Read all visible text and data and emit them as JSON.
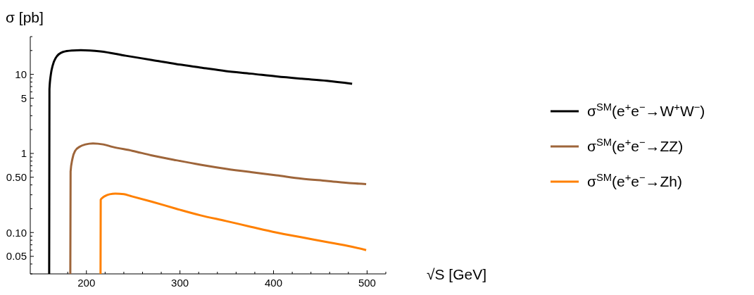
{
  "chart_data": {
    "type": "line",
    "xlabel": "√S  [GeV]",
    "ylabel": "σ [pb]",
    "log": "y",
    "legend": "right",
    "grid": false,
    "marker": "none",
    "line_style": "solid",
    "xlim": [
      140,
      520
    ],
    "xticks": [
      {
        "value": 160,
        "label": null
      },
      {
        "value": 180,
        "label": null
      },
      200,
      {
        "value": 220,
        "label": null
      },
      {
        "value": 240,
        "label": null
      },
      {
        "value": 260,
        "label": null
      },
      {
        "value": 280,
        "label": null
      },
      300,
      {
        "value": 320,
        "label": null
      },
      {
        "value": 340,
        "label": null
      },
      {
        "value": 360,
        "label": null
      },
      {
        "value": 380,
        "label": null
      },
      400,
      {
        "value": 420,
        "label": null
      },
      {
        "value": 440,
        "label": null
      },
      {
        "value": 460,
        "label": null
      },
      {
        "value": 480,
        "label": null
      },
      500,
      {
        "value": 520,
        "label": null
      }
    ],
    "ylim": [
      0.03,
      30
    ],
    "yticks": [
      {
        "value": 0.03,
        "label": null
      },
      {
        "value": 0.04,
        "label": null
      },
      {
        "value": 0.05,
        "label": "0.05"
      },
      {
        "value": 0.06,
        "label": null
      },
      {
        "value": 0.07,
        "label": null
      },
      {
        "value": 0.08,
        "label": null
      },
      {
        "value": 0.09,
        "label": null
      },
      {
        "value": 0.1,
        "label": "0.10"
      },
      {
        "value": 0.2,
        "label": null
      },
      {
        "value": 0.3,
        "label": null
      },
      {
        "value": 0.4,
        "label": null
      },
      {
        "value": 0.5,
        "label": "0.50"
      },
      {
        "value": 0.6,
        "label": null
      },
      {
        "value": 0.7,
        "label": null
      },
      {
        "value": 0.8,
        "label": null
      },
      {
        "value": 0.9,
        "label": null
      },
      1,
      {
        "value": 2,
        "label": null
      },
      {
        "value": 3,
        "label": null
      },
      {
        "value": 4,
        "label": null
      },
      5,
      {
        "value": 6,
        "label": null
      },
      {
        "value": 7,
        "label": null
      },
      {
        "value": 8,
        "label": null
      },
      {
        "value": 9,
        "label": null
      },
      10,
      {
        "value": 20,
        "label": null
      },
      {
        "value": 30,
        "label": null
      }
    ],
    "series": [
      {
        "name": "σ$^{SM}$(e$^{+}$e$^{−}$→W$^{+}$W$^{−}$)",
        "color": "#000000",
        "x": [
          160.2,
          160.5,
          162,
          164,
          167,
          175,
          185,
          194,
          215,
          242,
          270,
          296,
          322,
          349,
          376,
          403,
          430,
          457,
          484
        ],
        "values": [
          0.03,
          6.5,
          10,
          13,
          16,
          19.2,
          20,
          20.2,
          19.5,
          17.2,
          15.2,
          13.5,
          12.2,
          11,
          10.2,
          9.4,
          8.8,
          8.3,
          7.6
        ]
      },
      {
        "name": "σ$^{SM}$(e$^{+}$e$^{−}$→ZZ)",
        "color": "#9e653a",
        "x": [
          182.8,
          183.1,
          185,
          188,
          193,
          199,
          207,
          218,
          228,
          249,
          269,
          296,
          322,
          349,
          376,
          403,
          430,
          457,
          484,
          499
        ],
        "values": [
          0.03,
          0.59,
          0.85,
          1.08,
          1.22,
          1.3,
          1.34,
          1.3,
          1.21,
          1.08,
          0.95,
          0.82,
          0.72,
          0.64,
          0.58,
          0.53,
          0.48,
          0.45,
          0.42,
          0.41
        ]
      },
      {
        "name": "σ$^{SM}$(e$^{+}$e$^{−}$→Zh)",
        "color": "#ff8000",
        "x": [
          215.1,
          215.3,
          218,
          220,
          225,
          231,
          240,
          247,
          270,
          296,
          322,
          349,
          376,
          403,
          430,
          457,
          484,
          499
        ],
        "values": [
          0.03,
          0.26,
          0.28,
          0.29,
          0.305,
          0.31,
          0.305,
          0.29,
          0.245,
          0.2,
          0.165,
          0.14,
          0.118,
          0.1,
          0.087,
          0.076,
          0.066,
          0.06
        ]
      }
    ]
  }
}
